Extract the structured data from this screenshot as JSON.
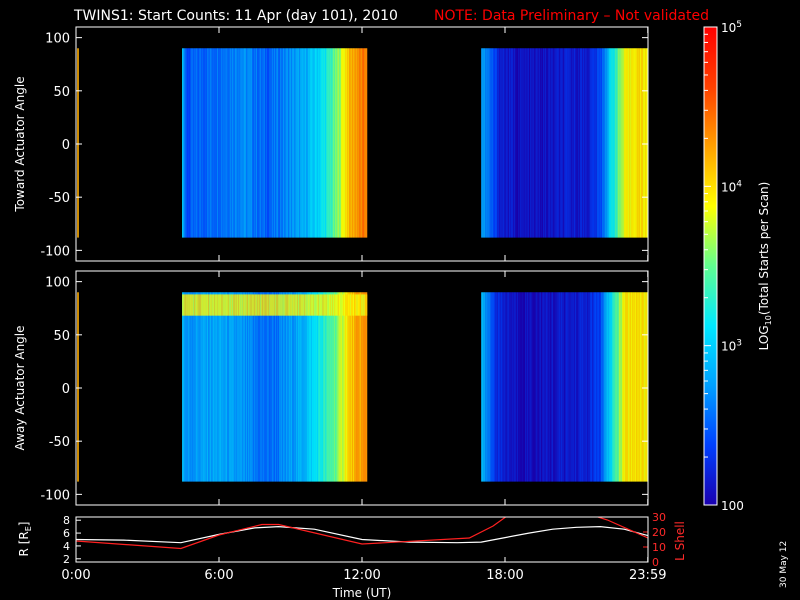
{
  "title": "TWINS1: Start Counts: 11 Apr (day 101), 2010",
  "note": "NOTE: Data Preliminary – Not validated",
  "stamp": "30 May 12",
  "colors": {
    "background": "#000000",
    "note": "#ff0000",
    "r_line": "#ffffff",
    "l_line": "#ff2020"
  },
  "colorbar": {
    "label_main": "LOG",
    "label_sub": "10",
    "label_rest": "(Total Starts per Scan)",
    "scale": "log",
    "range": [
      100,
      100000
    ],
    "ticks": [
      {
        "value": 100,
        "label": "100"
      },
      {
        "value": 1000,
        "base": "10",
        "exp": "3"
      },
      {
        "value": 10000,
        "base": "10",
        "exp": "4"
      },
      {
        "value": 100000,
        "base": "10",
        "exp": "5"
      }
    ],
    "colormap": [
      "#1a00b0",
      "#0040ff",
      "#00a0ff",
      "#00e8ff",
      "#60ff90",
      "#ffff00",
      "#ffa000",
      "#ff4000",
      "#ff0000"
    ]
  },
  "chart_data": [
    {
      "type": "heatmap",
      "name": "toward",
      "ylabel": "Toward Actuator Angle",
      "ylim": [
        -110,
        110
      ],
      "xlim": [
        0,
        24
      ],
      "yticks": [
        100,
        50,
        0,
        -50,
        -100
      ],
      "yrange_data": [
        -88,
        90
      ],
      "segments": [
        {
          "x_start": 4.45,
          "x_end": 12.2,
          "profile": [
            [
              4.45,
              3.2
            ],
            [
              4.6,
              2.4
            ],
            [
              5.0,
              2.5
            ],
            [
              6.0,
              2.6
            ],
            [
              7.0,
              2.7
            ],
            [
              7.5,
              2.6
            ],
            [
              8.0,
              2.5
            ],
            [
              8.5,
              2.6
            ],
            [
              9.0,
              2.7
            ],
            [
              9.5,
              2.8
            ],
            [
              10.0,
              3.0
            ],
            [
              10.5,
              3.2
            ],
            [
              11.0,
              3.6
            ],
            [
              11.4,
              4.1
            ],
            [
              11.8,
              4.3
            ],
            [
              12.2,
              4.4
            ]
          ]
        },
        {
          "x_start": 17.0,
          "x_end": 23.99,
          "profile": [
            [
              17.0,
              2.8
            ],
            [
              17.4,
              2.5
            ],
            [
              17.8,
              2.2
            ],
            [
              18.5,
              2.1
            ],
            [
              19.5,
              2.1
            ],
            [
              20.5,
              2.15
            ],
            [
              21.5,
              2.2
            ],
            [
              22.0,
              2.4
            ],
            [
              22.5,
              3.2
            ],
            [
              23.0,
              3.8
            ],
            [
              23.5,
              4.0
            ],
            [
              23.99,
              3.9
            ]
          ]
        }
      ]
    },
    {
      "type": "heatmap",
      "name": "away",
      "ylabel": "Away Actuator Angle",
      "ylim": [
        -110,
        110
      ],
      "xlim": [
        0,
        24
      ],
      "yticks": [
        100,
        50,
        0,
        -50,
        -100
      ],
      "yrange_data": [
        -88,
        90
      ],
      "segments": [
        {
          "x_start": 4.45,
          "x_end": 12.2,
          "profile": [
            [
              4.45,
              3.0
            ],
            [
              4.6,
              2.7
            ],
            [
              5.0,
              2.75
            ],
            [
              6.0,
              2.8
            ],
            [
              7.0,
              2.7
            ],
            [
              7.5,
              2.6
            ],
            [
              8.0,
              2.55
            ],
            [
              8.5,
              2.6
            ],
            [
              9.0,
              2.75
            ],
            [
              9.5,
              2.85
            ],
            [
              10.0,
              3.1
            ],
            [
              10.5,
              3.3
            ],
            [
              11.0,
              3.6
            ],
            [
              11.4,
              4.0
            ],
            [
              11.8,
              4.2
            ],
            [
              12.2,
              4.3
            ]
          ],
          "band": {
            "y_from": 68,
            "y_to": 88,
            "value": 3.9
          }
        },
        {
          "x_start": 17.0,
          "x_end": 23.99,
          "profile": [
            [
              17.0,
              2.9
            ],
            [
              17.4,
              2.5
            ],
            [
              17.8,
              2.2
            ],
            [
              18.5,
              2.1
            ],
            [
              19.5,
              2.1
            ],
            [
              20.5,
              2.15
            ],
            [
              21.5,
              2.2
            ],
            [
              22.0,
              2.4
            ],
            [
              22.5,
              3.2
            ],
            [
              23.0,
              3.9
            ],
            [
              23.5,
              4.0
            ],
            [
              23.99,
              3.9
            ]
          ]
        }
      ]
    },
    {
      "type": "line",
      "name": "orbit",
      "xlabel": "Time (UT)",
      "ylabel_left": "R [R",
      "ylabel_left_sub": "E",
      "ylabel_left_end": "]",
      "ylabel_right": "L Shell",
      "ylim_left": [
        1.5,
        8.5
      ],
      "ylim_right": [
        0,
        30
      ],
      "yticks_left": [
        8,
        6,
        4,
        2
      ],
      "yticks_right": [
        30,
        20,
        10,
        0
      ],
      "xticks": [
        {
          "value": 0,
          "label": "0:00"
        },
        {
          "value": 6,
          "label": "6:00"
        },
        {
          "value": 12,
          "label": "12:00"
        },
        {
          "value": 18,
          "label": "18:00"
        },
        {
          "value": 23.99,
          "label": "23:59"
        }
      ],
      "series": [
        {
          "name": "R",
          "axis": "left",
          "x": [
            0,
            2,
            4.4,
            6,
            7.5,
            8.5,
            10,
            12,
            14,
            16,
            17,
            18,
            19,
            20,
            21,
            22,
            23,
            24
          ],
          "y": [
            5.0,
            4.9,
            4.5,
            5.8,
            6.8,
            7.0,
            6.6,
            5.0,
            4.6,
            4.5,
            4.6,
            5.3,
            6.0,
            6.6,
            6.9,
            7.0,
            6.6,
            5.6
          ]
        },
        {
          "name": "L",
          "axis": "right",
          "x": [
            0,
            4.4,
            6,
            7.8,
            8.5,
            12,
            16.5,
            17.5,
            18.2,
            21.5,
            22.3,
            24
          ],
          "y": [
            14,
            9,
            18,
            25,
            25,
            12,
            16,
            24,
            32,
            32,
            28,
            16
          ]
        }
      ]
    }
  ]
}
